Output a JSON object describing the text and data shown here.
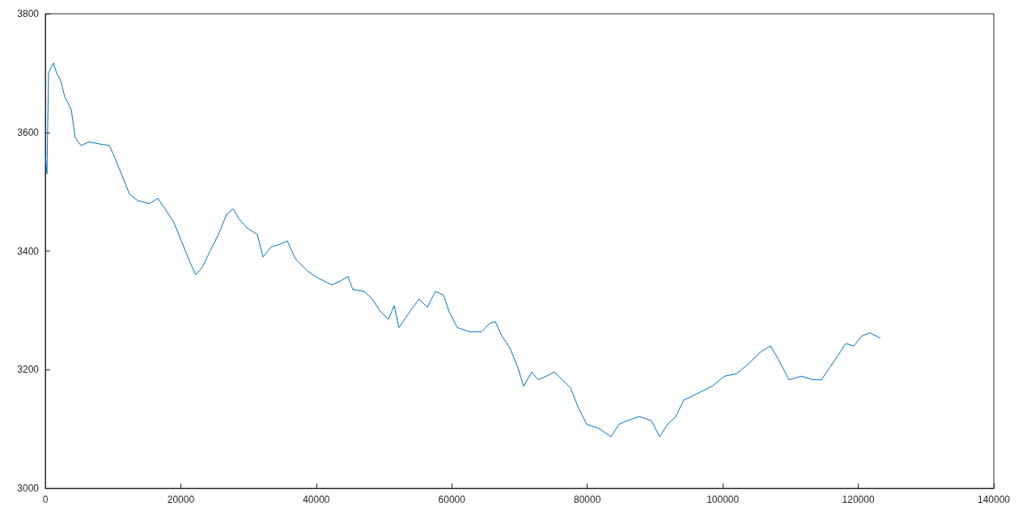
{
  "chart_data": {
    "type": "line",
    "x": [
      0,
      240,
      480,
      1200,
      1670,
      2270,
      2870,
      3820,
      4420,
      5260,
      6450,
      8240,
      9440,
      10270,
      11230,
      12420,
      13620,
      15410,
      16600,
      17800,
      18990,
      20190,
      21380,
      22220,
      23180,
      24370,
      25560,
      26760,
      27710,
      28550,
      29750,
      31300,
      32130,
      33330,
      34520,
      35720,
      36910,
      38710,
      40500,
      42290,
      43480,
      44680,
      45390,
      47070,
      48260,
      49460,
      50650,
      51490,
      52200,
      53040,
      54240,
      55190,
      56390,
      57580,
      58770,
      59610,
      60800,
      62600,
      64390,
      65580,
      66420,
      67380,
      68570,
      69760,
      70600,
      71790,
      72750,
      73940,
      75140,
      76330,
      77530,
      78720,
      79920,
      81710,
      83500,
      84700,
      85890,
      87680,
      89480,
      90670,
      91870,
      93060,
      94250,
      95450,
      96640,
      98430,
      100230,
      102020,
      103810,
      105600,
      107040,
      108230,
      109780,
      111580,
      113370,
      114560,
      115760,
      116950,
      118140,
      119340,
      120530,
      121730,
      123280
    ],
    "series": [
      {
        "color": "#0072bd",
        "values": [
          3564,
          3530,
          3700,
          3717,
          3700,
          3687,
          3660,
          3639,
          3591,
          3578,
          3584,
          3580,
          3578,
          3557,
          3530,
          3496,
          3485,
          3480,
          3489,
          3469,
          3448,
          3414,
          3380,
          3360,
          3373,
          3401,
          3428,
          3462,
          3471,
          3455,
          3439,
          3428,
          3390,
          3407,
          3411,
          3417,
          3387,
          3366,
          3353,
          3343,
          3349,
          3357,
          3335,
          3332,
          3319,
          3298,
          3285,
          3308,
          3271,
          3285,
          3305,
          3319,
          3305,
          3332,
          3326,
          3298,
          3271,
          3264,
          3264,
          3278,
          3281,
          3257,
          3237,
          3203,
          3172,
          3196,
          3183,
          3189,
          3196,
          3183,
          3169,
          3135,
          3108,
          3101,
          3087,
          3108,
          3114,
          3121,
          3114,
          3087,
          3108,
          3121,
          3149,
          3155,
          3162,
          3172,
          3189,
          3193,
          3210,
          3230,
          3240,
          3217,
          3183,
          3189,
          3183,
          3183,
          3203,
          3223,
          3244,
          3240,
          3257,
          3262,
          3253
        ]
      }
    ],
    "xlim": [
      0,
      140000
    ],
    "xticks": [
      0,
      20000,
      40000,
      60000,
      80000,
      100000,
      120000,
      140000
    ],
    "ylim": [
      3000,
      3800
    ],
    "yticks": [
      3000,
      3200,
      3400,
      3600,
      3800
    ],
    "grid": false,
    "marker": "none",
    "line_style": "solid"
  }
}
